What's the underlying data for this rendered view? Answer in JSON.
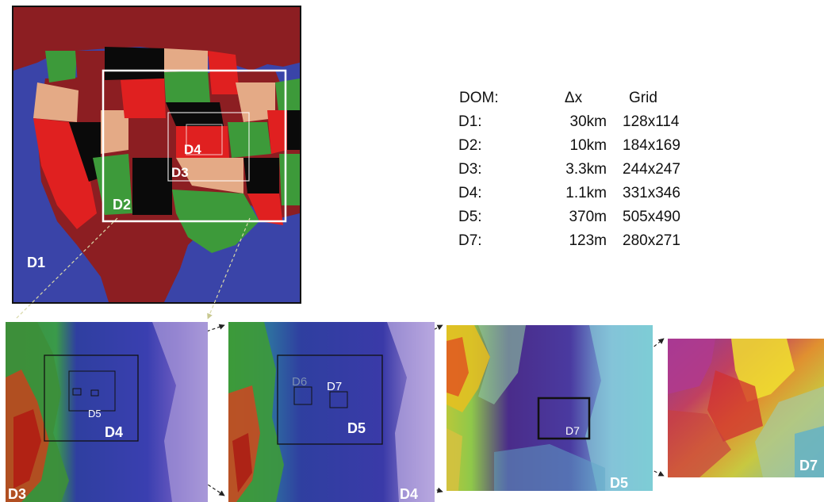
{
  "map": {
    "labels": {
      "d1": "D1",
      "d2": "D2",
      "d3": "D3",
      "d4": "D4"
    }
  },
  "table": {
    "headers": [
      "DOM:",
      "Δx",
      "Grid"
    ],
    "rows": [
      [
        "D1:",
        "30km",
        "128x114"
      ],
      [
        "D2:",
        "10km",
        "184x169"
      ],
      [
        "D3:",
        "3.3km",
        "244x247"
      ],
      [
        "D4:",
        "1.1km",
        "331x346"
      ],
      [
        "D5:",
        "370m",
        "505x490"
      ],
      [
        "D7:",
        "123m",
        "280x271"
      ]
    ]
  },
  "panels": {
    "p1": {
      "corner": "D3",
      "inner_small": "D5",
      "inner_big": "D4"
    },
    "p2": {
      "corner": "D4",
      "inner_a": "D6",
      "inner_b": "D7",
      "inner_big": "D5"
    },
    "p3": {
      "corner": "D5",
      "inner": "D7"
    },
    "p4": {
      "corner": "D7"
    }
  },
  "colors": {
    "ocean": "#3a44a8",
    "land_red": "#8c1e22",
    "state_green": "#3d9a3a",
    "state_black": "#0a0a0a",
    "state_red": "#e02020",
    "state_tan": "#e4aa86",
    "arrow": "#222222",
    "arrow_light": "#d8d8a8"
  }
}
